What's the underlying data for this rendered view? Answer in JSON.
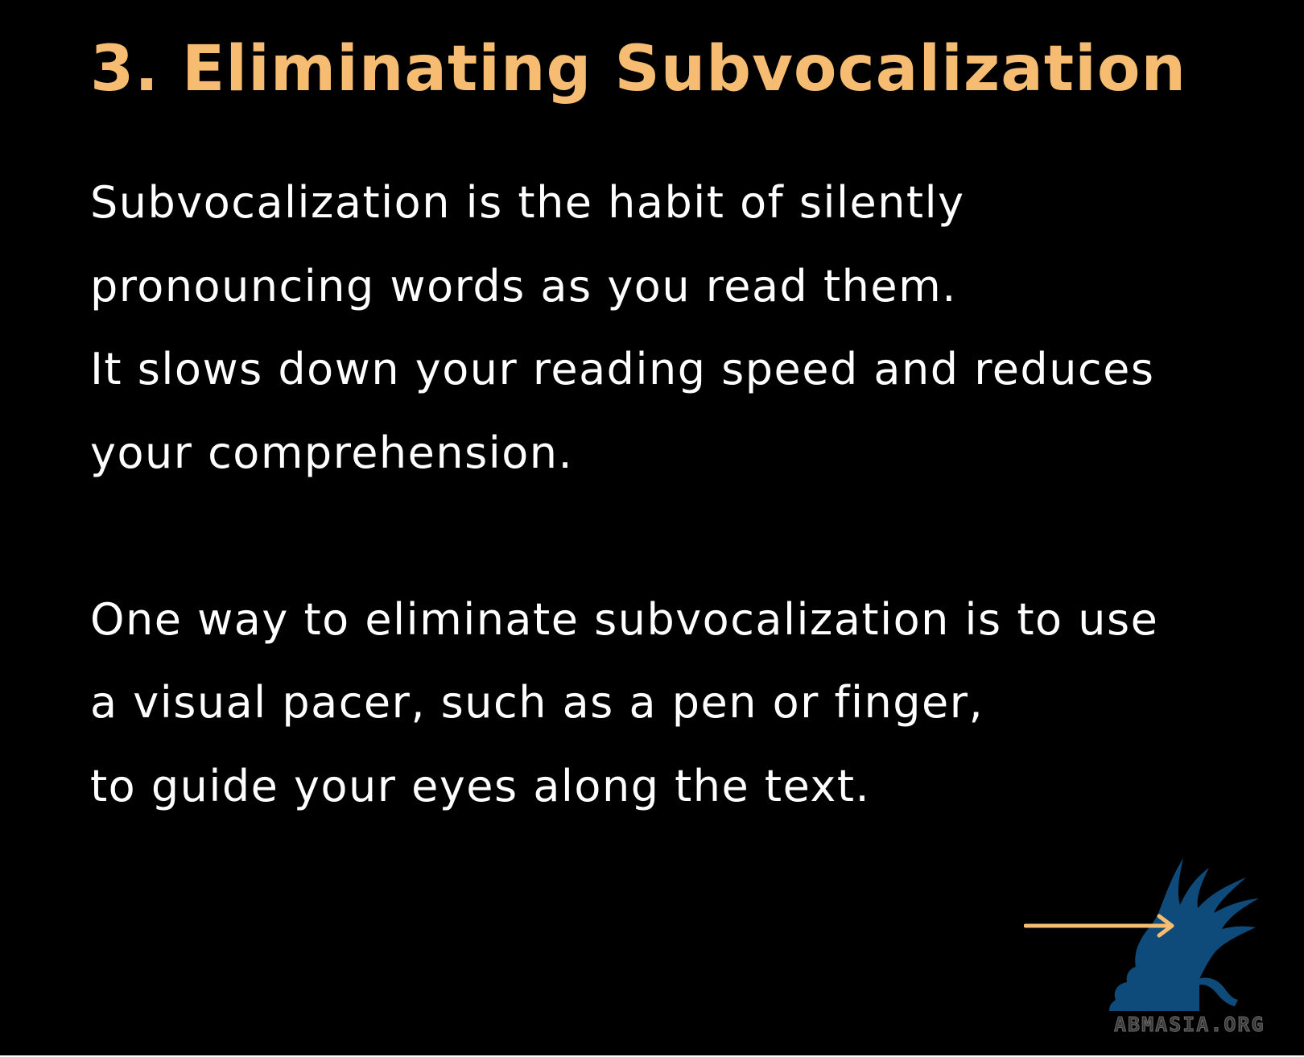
{
  "slide": {
    "title": "3. Eliminating Subvocalization",
    "title_color": "#F5BC72",
    "background_color": "#000000",
    "text_color": "#FFFFFF",
    "paragraph_1": [
      "Subvocalization is the habit of silently",
      "pronouncing words as you read them.",
      "It slows down your reading speed and reduces",
      "your comprehension."
    ],
    "paragraph_2": [
      "One way to eliminate subvocalization is to use",
      "a visual pacer, such as a pen or finger,",
      "to guide your eyes along the text."
    ]
  },
  "navigation": {
    "next_icon": "arrow-right-icon",
    "arrow_color": "#F5BC72"
  },
  "branding": {
    "logo_icon": "griffin-logo-icon",
    "logo_color": "#0E4B7A",
    "watermark_text": "ABMASIA.ORG"
  }
}
